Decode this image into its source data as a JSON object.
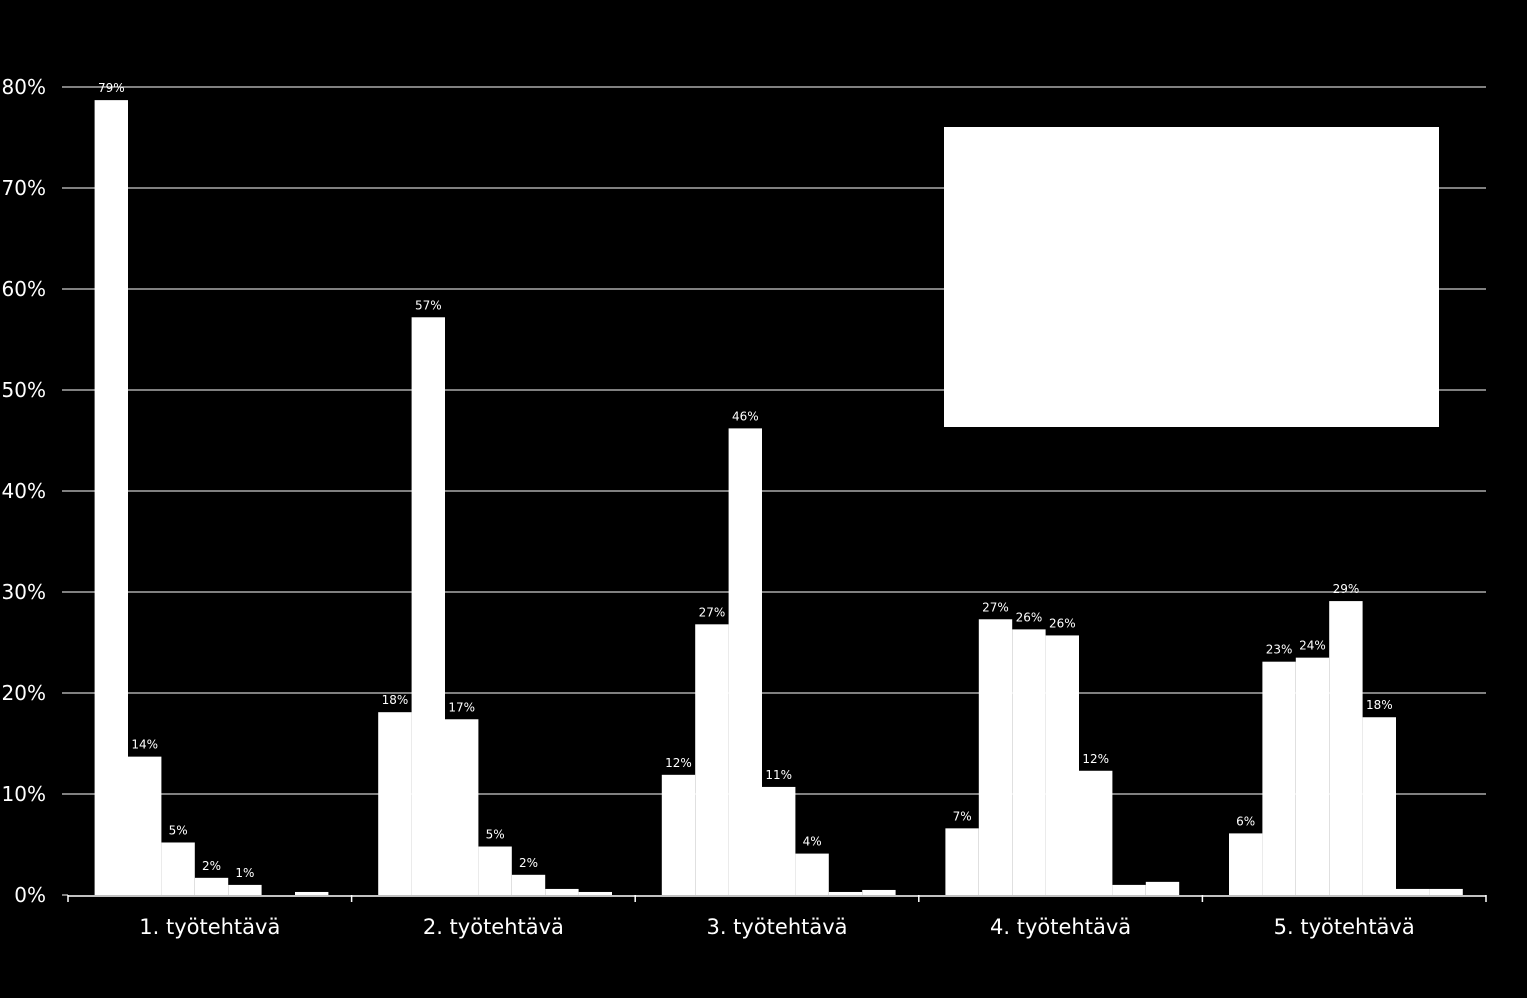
{
  "chart_data": {
    "type": "bar",
    "categories": [
      "1. työtehtävä",
      "2. työtehtävä",
      "3. työtehtävä",
      "4. työtehtävä",
      "5. työtehtävä"
    ],
    "series": [
      {
        "values": [
          78.7,
          18.1,
          11.9,
          6.6,
          6.1
        ],
        "labels": [
          "79%",
          "18%",
          "12%",
          "7%",
          "6%"
        ]
      },
      {
        "values": [
          13.7,
          57.2,
          26.8,
          27.3,
          23.1
        ],
        "labels": [
          "14%",
          "57%",
          "27%",
          "27%",
          "23%"
        ]
      },
      {
        "values": [
          5.2,
          17.4,
          46.2,
          26.3,
          23.5
        ],
        "labels": [
          "5%",
          "17%",
          "46%",
          "26%",
          "24%"
        ]
      },
      {
        "values": [
          1.7,
          4.8,
          10.7,
          25.7,
          29.1
        ],
        "labels": [
          "2%",
          "5%",
          "11%",
          "26%",
          "29%"
        ]
      },
      {
        "values": [
          1.0,
          2.0,
          4.1,
          12.3,
          17.6
        ],
        "labels": [
          "1%",
          "2%",
          "4%",
          "12%",
          "18%"
        ]
      },
      {
        "values": [
          0.0,
          0.6,
          0.3,
          1.0,
          0.6
        ],
        "labels": [
          "",
          "",
          "",
          "",
          ""
        ]
      },
      {
        "values": [
          0.3,
          0.3,
          0.5,
          1.3,
          0.6
        ],
        "labels": [
          "",
          "",
          "",
          "",
          ""
        ]
      }
    ],
    "y_ticks": [
      "0%",
      "10%",
      "20%",
      "30%",
      "40%",
      "50%",
      "60%",
      "70%",
      "80%"
    ],
    "ylim": [
      0,
      80
    ],
    "grid": true,
    "legend": "top-right",
    "colors": {
      "background": "#000000",
      "bars": "#ffffff",
      "gridlines": "#ffffff",
      "legend_box": "#ffffff"
    }
  }
}
